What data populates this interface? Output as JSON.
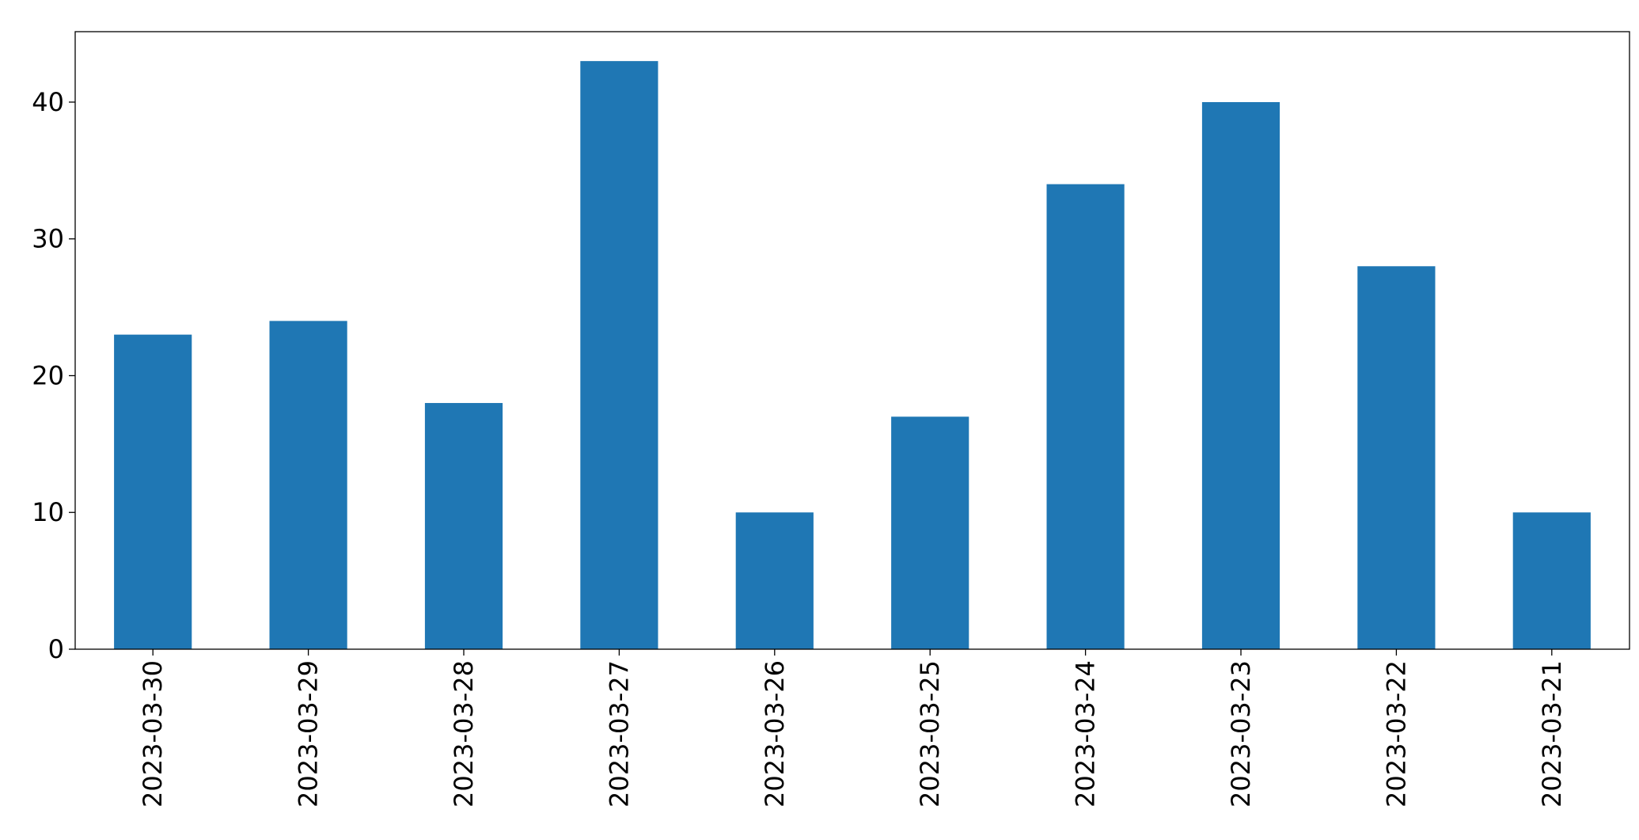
{
  "chart_data": {
    "type": "bar",
    "categories": [
      "2023-03-30",
      "2023-03-29",
      "2023-03-28",
      "2023-03-27",
      "2023-03-26",
      "2023-03-25",
      "2023-03-24",
      "2023-03-23",
      "2023-03-22",
      "2023-03-21"
    ],
    "values": [
      23,
      24,
      18,
      43,
      10,
      17,
      34,
      40,
      28,
      10
    ],
    "color": "#1f77b4",
    "ylim": [
      0,
      45.15
    ],
    "yticks": [
      0,
      10,
      20,
      30,
      40
    ],
    "grid": false
  }
}
